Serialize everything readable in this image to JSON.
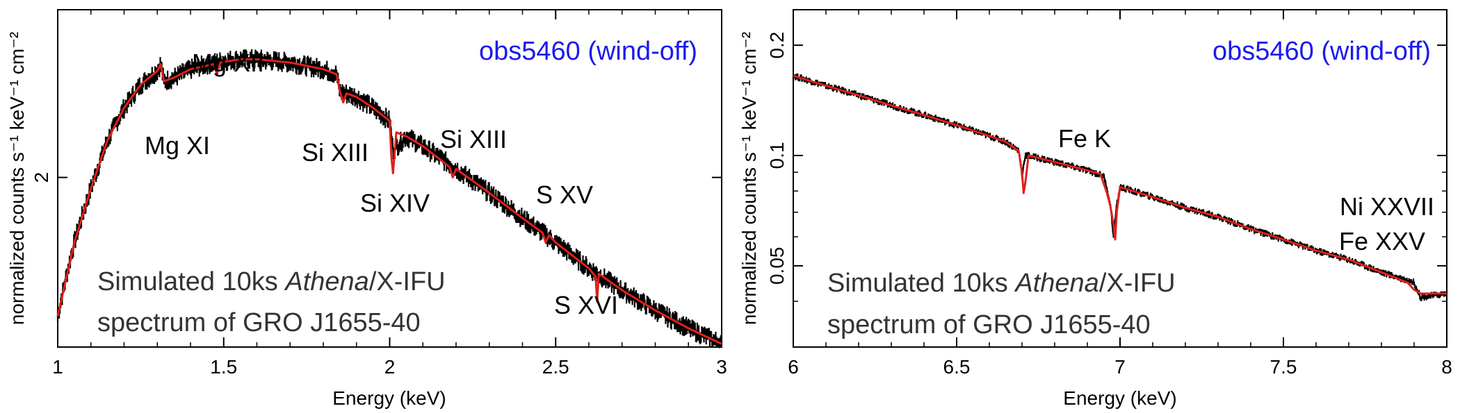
{
  "chart_data": [
    {
      "type": "line",
      "xlabel": "Energy (keV)",
      "ylabel": "normalized counts s⁻¹ keV⁻¹ cm⁻²",
      "xlim": [
        1,
        3
      ],
      "ylim": [
        1.35,
        2.95
      ],
      "y_scale": "log",
      "x_ticks": [
        1,
        1.5,
        2,
        2.5,
        3
      ],
      "x_tick_labels": [
        "1",
        "1.5",
        "2",
        "2.5",
        "3"
      ],
      "y_ticks": [
        2
      ],
      "y_tick_labels": [
        "2"
      ],
      "annotation_observation": "obs5460 (wind-off)",
      "caption": {
        "line1_prefix": "Simulated 10ks ",
        "line1_italic": "Athena",
        "line1_suffix": "/X-IFU",
        "line2": "spectrum of GRO J1655-40"
      },
      "line_labels": [
        "Mg XII",
        "Mg XI",
        "Si XIII",
        "Si XIII",
        "Si XIV",
        "S XV",
        "S XVI"
      ],
      "series": [
        {
          "name": "data",
          "color": "#000000",
          "x": [
            1.0,
            1.05,
            1.1,
            1.15,
            1.2,
            1.25,
            1.3,
            1.31,
            1.32,
            1.35,
            1.4,
            1.45,
            1.5,
            1.55,
            1.6,
            1.65,
            1.7,
            1.75,
            1.8,
            1.84,
            1.85,
            1.9,
            1.95,
            2.0,
            2.01,
            2.05,
            2.1,
            2.2,
            2.3,
            2.4,
            2.5,
            2.6,
            2.7,
            2.8,
            2.9,
            3.0
          ],
          "y": [
            1.45,
            1.72,
            1.95,
            2.18,
            2.35,
            2.48,
            2.56,
            2.6,
            2.5,
            2.52,
            2.57,
            2.6,
            2.62,
            2.63,
            2.63,
            2.62,
            2.61,
            2.59,
            2.57,
            2.54,
            2.44,
            2.41,
            2.35,
            2.28,
            2.13,
            2.2,
            2.15,
            2.04,
            1.93,
            1.82,
            1.72,
            1.62,
            1.54,
            1.47,
            1.41,
            1.36
          ]
        },
        {
          "name": "model",
          "color": "#e0201b",
          "x": [
            1.0,
            1.05,
            1.1,
            1.15,
            1.2,
            1.25,
            1.3,
            1.31,
            1.32,
            1.35,
            1.4,
            1.47,
            1.48,
            1.49,
            1.55,
            1.6,
            1.65,
            1.7,
            1.75,
            1.8,
            1.84,
            1.85,
            1.86,
            1.87,
            1.9,
            1.95,
            2.0,
            2.005,
            2.01,
            2.02,
            2.05,
            2.1,
            2.18,
            2.19,
            2.2,
            2.3,
            2.4,
            2.46,
            2.47,
            2.48,
            2.5,
            2.6,
            2.62,
            2.625,
            2.63,
            2.7,
            2.8,
            2.9,
            3.0
          ],
          "y": [
            1.45,
            1.72,
            1.95,
            2.18,
            2.35,
            2.48,
            2.56,
            2.6,
            2.5,
            2.52,
            2.57,
            2.6,
            2.54,
            2.61,
            2.63,
            2.63,
            2.62,
            2.61,
            2.59,
            2.57,
            2.54,
            2.44,
            2.38,
            2.43,
            2.41,
            2.35,
            2.28,
            2.1,
            2.02,
            2.22,
            2.2,
            2.15,
            2.05,
            2.0,
            2.04,
            1.93,
            1.82,
            1.76,
            1.72,
            1.75,
            1.72,
            1.62,
            1.59,
            1.5,
            1.6,
            1.54,
            1.47,
            1.41,
            1.36
          ]
        }
      ]
    },
    {
      "type": "line",
      "xlabel": "Energy (keV)",
      "ylabel": "normalized counts s⁻¹ keV⁻¹ cm⁻²",
      "xlim": [
        6,
        8
      ],
      "ylim": [
        0.03,
        0.25
      ],
      "y_scale": "log",
      "x_ticks": [
        6,
        6.5,
        7,
        7.5,
        8
      ],
      "x_tick_labels": [
        "6",
        "6.5",
        "7",
        "7.5",
        "8"
      ],
      "y_ticks": [
        0.05,
        0.1,
        0.2
      ],
      "y_tick_labels": [
        "0.05",
        "0.1",
        "0.2"
      ],
      "annotation_observation": "obs5460 (wind-off)",
      "caption": {
        "line1_prefix": "Simulated 10ks ",
        "line1_italic": "Athena",
        "line1_suffix": "/X-IFU",
        "line2": "spectrum of GRO J1655-40"
      },
      "line_labels": [
        "Fe K",
        "Ni XXVII",
        "Fe XXV"
      ],
      "series": [
        {
          "name": "data",
          "color": "#000000",
          "x": [
            6.0,
            6.1,
            6.2,
            6.3,
            6.4,
            6.5,
            6.6,
            6.65,
            6.69,
            6.7,
            6.71,
            6.72,
            6.8,
            6.9,
            6.95,
            6.97,
            6.98,
            6.99,
            7.0,
            7.1,
            7.2,
            7.3,
            7.4,
            7.5,
            7.6,
            7.7,
            7.8,
            7.9,
            7.92,
            8.0
          ],
          "y": [
            0.165,
            0.155,
            0.146,
            0.137,
            0.129,
            0.121,
            0.113,
            0.109,
            0.103,
            0.088,
            0.1,
            0.1,
            0.096,
            0.091,
            0.088,
            0.074,
            0.06,
            0.073,
            0.082,
            0.077,
            0.072,
            0.068,
            0.063,
            0.059,
            0.055,
            0.052,
            0.048,
            0.045,
            0.041,
            0.042
          ]
        },
        {
          "name": "model",
          "color": "#e0201b",
          "x": [
            6.0,
            6.1,
            6.2,
            6.3,
            6.4,
            6.5,
            6.6,
            6.65,
            6.69,
            6.7,
            6.705,
            6.71,
            6.72,
            6.8,
            6.9,
            6.94,
            6.96,
            6.97,
            6.98,
            6.985,
            6.99,
            7.0,
            7.1,
            7.2,
            7.3,
            7.4,
            7.5,
            7.6,
            7.7,
            7.8,
            7.88,
            7.9,
            7.92,
            8.0
          ],
          "y": [
            0.165,
            0.155,
            0.146,
            0.137,
            0.129,
            0.121,
            0.113,
            0.109,
            0.103,
            0.09,
            0.079,
            0.084,
            0.1,
            0.096,
            0.091,
            0.089,
            0.079,
            0.073,
            0.065,
            0.059,
            0.07,
            0.082,
            0.077,
            0.072,
            0.068,
            0.063,
            0.059,
            0.055,
            0.052,
            0.048,
            0.045,
            0.043,
            0.042,
            0.042
          ]
        }
      ]
    }
  ]
}
